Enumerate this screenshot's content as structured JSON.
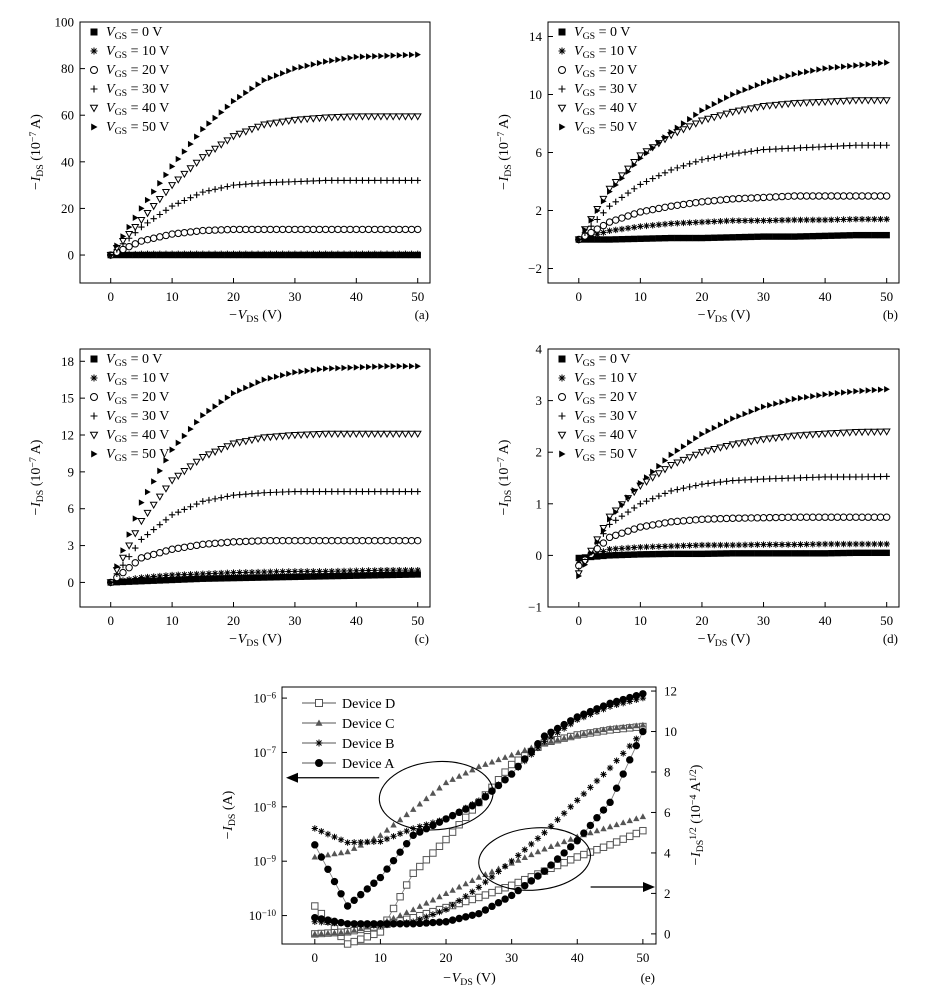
{
  "figure": {
    "panels": [
      {
        "id": "a",
        "label": "(a)"
      },
      {
        "id": "b",
        "label": "(b)"
      },
      {
        "id": "c",
        "label": "(c)"
      },
      {
        "id": "d",
        "label": "(d)"
      },
      {
        "id": "e",
        "label": "(e)"
      }
    ]
  },
  "chart_data": [
    {
      "panel": "(a)",
      "type": "scatter",
      "xlabel": {
        "main": "−V",
        "sub": "DS",
        "unit": " (V)"
      },
      "ylabel": {
        "main": "−I",
        "sub": "DS",
        "unit": " (10",
        "sup": "−7",
        "unit2": " A)"
      },
      "xlim": [
        -5,
        52
      ],
      "ylim": [
        -12,
        100
      ],
      "xticks": [
        0,
        10,
        20,
        30,
        40,
        50
      ],
      "yticks": [
        0,
        20,
        40,
        60,
        80,
        100
      ],
      "legend_position": "top-left",
      "series": [
        {
          "name": "= 0 V",
          "marker": "square",
          "values": [
            0,
            0,
            0,
            0,
            0,
            0,
            0,
            0,
            0,
            0,
            0
          ]
        },
        {
          "name": "= 10 V",
          "marker": "asterisk",
          "values": [
            0,
            0.5,
            0.5,
            0.5,
            0.5,
            0.5,
            0.5,
            0.5,
            0.5,
            0.5,
            0.5
          ]
        },
        {
          "name": "= 20 V",
          "marker": "circle",
          "values": [
            0,
            6,
            9,
            10.5,
            11,
            11,
            11,
            11,
            11,
            11,
            11
          ]
        },
        {
          "name": "= 30 V",
          "marker": "plus",
          "values": [
            0,
            12,
            21,
            27,
            30,
            31,
            31.5,
            32,
            32,
            32,
            32
          ]
        },
        {
          "name": "= 40 V",
          "marker": "tri-down",
          "values": [
            0,
            15,
            30,
            42,
            51,
            56,
            58,
            59,
            59.5,
            59.5,
            59.5
          ]
        },
        {
          "name": "= 50 V",
          "marker": "tri-right",
          "values": [
            0,
            20,
            38,
            54,
            66,
            75,
            80,
            83,
            85,
            85.5,
            86
          ]
        }
      ],
      "x": [
        0,
        5,
        10,
        15,
        20,
        25,
        30,
        35,
        40,
        45,
        50
      ]
    },
    {
      "panel": "(b)",
      "type": "scatter",
      "xlabel": {
        "main": "−V",
        "sub": "DS",
        "unit": " (V)"
      },
      "ylabel": {
        "main": "−I",
        "sub": "DS",
        "unit": " (10",
        "sup": "−7",
        "unit2": " A)"
      },
      "xlim": [
        -5,
        52
      ],
      "ylim": [
        -3,
        15
      ],
      "xticks": [
        0,
        10,
        20,
        30,
        40,
        50
      ],
      "yticks": [
        -2,
        2,
        6,
        10,
        14
      ],
      "legend_position": "top-left",
      "series": [
        {
          "name": "= 0 V",
          "marker": "square",
          "values": [
            0,
            0,
            0.05,
            0.1,
            0.1,
            0.15,
            0.2,
            0.2,
            0.25,
            0.3,
            0.3
          ]
        },
        {
          "name": "= 10 V",
          "marker": "asterisk",
          "values": [
            0,
            0.6,
            0.9,
            1.1,
            1.2,
            1.3,
            1.3,
            1.35,
            1.35,
            1.4,
            1.4
          ]
        },
        {
          "name": "= 20 V",
          "marker": "circle",
          "values": [
            0,
            1.2,
            1.9,
            2.3,
            2.6,
            2.8,
            2.9,
            3,
            3,
            3,
            3
          ]
        },
        {
          "name": "= 30 V",
          "marker": "plus",
          "values": [
            0,
            2.3,
            3.8,
            4.8,
            5.5,
            5.9,
            6.2,
            6.3,
            6.4,
            6.5,
            6.5
          ]
        },
        {
          "name": "= 40 V",
          "marker": "tri-down",
          "values": [
            0,
            3.5,
            5.8,
            7.2,
            8.2,
            8.8,
            9.2,
            9.4,
            9.5,
            9.6,
            9.6
          ]
        },
        {
          "name": "= 50 V",
          "marker": "tri-right",
          "values": [
            0,
            3.3,
            5.6,
            7.4,
            8.9,
            10.0,
            10.8,
            11.4,
            11.8,
            12.0,
            12.2
          ]
        }
      ],
      "x": [
        0,
        5,
        10,
        15,
        20,
        25,
        30,
        35,
        40,
        45,
        50
      ]
    },
    {
      "panel": "(c)",
      "type": "scatter",
      "xlabel": {
        "main": "−V",
        "sub": "DS",
        "unit": " (V)"
      },
      "ylabel": {
        "main": "−I",
        "sub": "DS",
        "unit": " (10",
        "sup": "−7",
        "unit2": " A)"
      },
      "xlim": [
        -5,
        52
      ],
      "ylim": [
        -2,
        19
      ],
      "xticks": [
        0,
        10,
        20,
        30,
        40,
        50
      ],
      "yticks": [
        0,
        3,
        6,
        9,
        12,
        15,
        18
      ],
      "legend_position": "top-left",
      "series": [
        {
          "name": "= 0 V",
          "marker": "square",
          "values": [
            0,
            0.1,
            0.2,
            0.3,
            0.35,
            0.4,
            0.45,
            0.5,
            0.55,
            0.6,
            0.65
          ]
        },
        {
          "name": "= 10 V",
          "marker": "asterisk",
          "values": [
            0,
            0.4,
            0.6,
            0.7,
            0.8,
            0.85,
            0.9,
            0.9,
            0.95,
            1,
            1
          ]
        },
        {
          "name": "= 20 V",
          "marker": "circle",
          "values": [
            0,
            2,
            2.7,
            3.1,
            3.3,
            3.4,
            3.4,
            3.4,
            3.4,
            3.4,
            3.4
          ]
        },
        {
          "name": "= 30 V",
          "marker": "plus",
          "values": [
            0,
            3.5,
            5.5,
            6.6,
            7.1,
            7.3,
            7.4,
            7.4,
            7.4,
            7.4,
            7.4
          ]
        },
        {
          "name": "= 40 V",
          "marker": "tri-down",
          "values": [
            0,
            5,
            8.3,
            10.2,
            11.3,
            11.8,
            12,
            12.1,
            12.1,
            12.1,
            12.1
          ]
        },
        {
          "name": "= 50 V",
          "marker": "tri-right",
          "values": [
            0,
            6.5,
            10.8,
            13.6,
            15.4,
            16.5,
            17.1,
            17.4,
            17.5,
            17.6,
            17.6
          ]
        }
      ],
      "x": [
        0,
        5,
        10,
        15,
        20,
        25,
        30,
        35,
        40,
        45,
        50
      ]
    },
    {
      "panel": "(d)",
      "type": "scatter",
      "xlabel": {
        "main": "−V",
        "sub": "DS",
        "unit": " (V)"
      },
      "ylabel": {
        "main": "−I",
        "sub": "DS",
        "unit": " (10",
        "sup": "−7",
        "unit2": " A)"
      },
      "xlim": [
        -5,
        52
      ],
      "ylim": [
        -1,
        4
      ],
      "xticks": [
        0,
        10,
        20,
        30,
        40,
        50
      ],
      "yticks": [
        -1,
        0,
        1,
        2,
        3,
        4
      ],
      "legend_position": "top-left",
      "series": [
        {
          "name": "= 0 V",
          "marker": "square",
          "values": [
            -0.05,
            0,
            0.02,
            0.03,
            0.03,
            0.04,
            0.04,
            0.04,
            0.04,
            0.05,
            0.05
          ]
        },
        {
          "name": "= 10 V",
          "marker": "asterisk",
          "values": [
            -0.1,
            0.12,
            0.16,
            0.18,
            0.2,
            0.2,
            0.21,
            0.21,
            0.22,
            0.22,
            0.22
          ]
        },
        {
          "name": "= 20 V",
          "marker": "circle",
          "values": [
            -0.2,
            0.35,
            0.55,
            0.65,
            0.7,
            0.72,
            0.73,
            0.74,
            0.74,
            0.74,
            0.74
          ]
        },
        {
          "name": "= 30 V",
          "marker": "plus",
          "values": [
            -0.3,
            0.6,
            1.0,
            1.25,
            1.38,
            1.45,
            1.48,
            1.5,
            1.52,
            1.52,
            1.53
          ]
        },
        {
          "name": "= 40 V",
          "marker": "tri-down",
          "values": [
            -0.35,
            0.75,
            1.35,
            1.75,
            2.0,
            2.15,
            2.25,
            2.32,
            2.36,
            2.39,
            2.4
          ]
        },
        {
          "name": "= 50 V",
          "marker": "tri-right",
          "values": [
            -0.4,
            0.7,
            1.4,
            1.95,
            2.35,
            2.65,
            2.88,
            3.03,
            3.12,
            3.18,
            3.22
          ]
        }
      ],
      "x": [
        0,
        5,
        10,
        15,
        20,
        25,
        30,
        35,
        40,
        45,
        50
      ]
    },
    {
      "panel": "(e)",
      "type": "scatter",
      "xlabel": {
        "main": "−V",
        "sub": "DS",
        "unit": " (V)"
      },
      "ylabel_left": {
        "main": "−I",
        "sub": "DS",
        "unit": " (A)"
      },
      "ylabel_right": {
        "main": "−I",
        "sub": "DS",
        "sup": "1/2",
        "unit": " (10",
        "sup2": "−4",
        "unit2": " A",
        "sup3": "1/2",
        "unit3": ")"
      },
      "xlim": [
        -5,
        52
      ],
      "xticks": [
        0,
        10,
        20,
        30,
        40,
        50
      ],
      "y_left_scale": "log",
      "y_left_lim": [
        3e-11,
        1.6e-06
      ],
      "y_left_ticks": [
        {
          "label": "10",
          "sup": "−6",
          "value": -6
        },
        {
          "label": "10",
          "sup": "−7",
          "value": -7
        },
        {
          "label": "10",
          "sup": "−8",
          "value": -8
        },
        {
          "label": "10",
          "sup": "−9",
          "value": -9
        },
        {
          "label": "10",
          "sup": "−10",
          "value": -10
        }
      ],
      "y_right_lim": [
        -0.5,
        12.2
      ],
      "y_right_ticks": [
        0,
        2,
        4,
        6,
        8,
        10,
        12
      ],
      "legend_position": "top-left",
      "x": [
        0,
        5,
        10,
        15,
        20,
        25,
        30,
        35,
        40,
        45,
        50
      ],
      "series_log": [
        {
          "name": "Device D",
          "marker": "open-square",
          "values": [
            1.5e-10,
            3e-11,
            5e-11,
            6e-10,
            2.5e-09,
            1.2e-08,
            6e-08,
            1.5e-07,
            2.1e-07,
            2.6e-07,
            3e-07
          ]
        },
        {
          "name": "Device C",
          "marker": "triangle",
          "values": [
            1.2e-09,
            1.5e-09,
            3e-09,
            9e-09,
            2.8e-08,
            5.5e-08,
            9e-08,
            1.5e-07,
            2.1e-07,
            2.8e-07,
            3.2e-07
          ]
        },
        {
          "name": "Device B",
          "marker": "asterisk",
          "values": [
            4e-09,
            2.2e-09,
            2.3e-09,
            4e-09,
            6e-09,
            1.3e-08,
            4e-08,
            1.6e-07,
            4e-07,
            7e-07,
            1e-06
          ]
        },
        {
          "name": "Device A",
          "marker": "filled-circle",
          "values": [
            2e-09,
            1.5e-10,
            5e-10,
            3e-09,
            6e-09,
            1.2e-08,
            4e-08,
            2e-07,
            4.5e-07,
            8e-07,
            1.2e-06
          ]
        }
      ],
      "series_sqrt": [
        {
          "name": "Device D",
          "marker": "open-square",
          "values": [
            0,
            0.1,
            0.4,
            0.8,
            1.3,
            1.8,
            2.4,
            3.1,
            3.8,
            4.4,
            5.1
          ]
        },
        {
          "name": "Device C",
          "marker": "triangle",
          "values": [
            0,
            0.1,
            0.5,
            1.2,
            2.0,
            2.8,
            3.5,
            4.2,
            4.8,
            5.3,
            5.8
          ]
        },
        {
          "name": "Device B",
          "marker": "asterisk",
          "values": [
            0.6,
            0.5,
            0.4,
            0.6,
            1.2,
            2.3,
            3.6,
            5.0,
            6.6,
            8.2,
            10.0
          ]
        },
        {
          "name": "Device A",
          "marker": "filled-circle",
          "values": [
            0.8,
            0.5,
            0.5,
            0.5,
            0.6,
            1.0,
            1.9,
            3.1,
            4.6,
            6.5,
            10.0
          ]
        }
      ]
    }
  ]
}
